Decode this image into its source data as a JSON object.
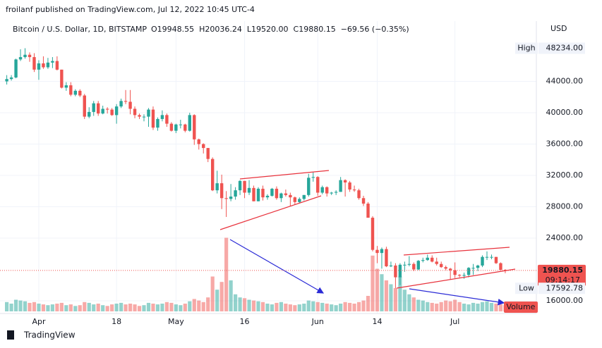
{
  "header": {
    "published": "froilanf published on TradingView.com, Jul 12, 2022 10:45 UTC-4",
    "symbol": "Bitcoin / U.S. Dollar, 1D, BITSTAMP",
    "open": "O19948.55",
    "high": "H20036.24",
    "low": "L19520.00",
    "close": "C19880.15",
    "change": "−69.56 (−0.35%)"
  },
  "chart_data": {
    "type": "candlestick",
    "currency": "USD",
    "up_color": "#26a69a",
    "down_color": "#ef5350",
    "grid": true,
    "open": [
      44000,
      44300,
      44500,
      46800,
      47100,
      47400,
      47100,
      45500,
      46300,
      45800,
      46400,
      46600,
      45500,
      43200,
      43500,
      42300,
      42800,
      42200,
      39500,
      40100,
      41200,
      39900,
      40500,
      40400,
      39700,
      40800,
      41500,
      41400,
      40500,
      39700,
      39500,
      39500,
      40400,
      38100,
      39200,
      39700,
      38600,
      37700,
      38500,
      38500,
      37700,
      39700,
      36600,
      36000,
      35500,
      34100,
      30100,
      31000,
      29100,
      29000,
      29300,
      30100,
      31300,
      29800,
      30400,
      28700,
      30300,
      29200,
      29400,
      30300,
      29100,
      29700,
      29500,
      29200,
      28600,
      29000,
      29500,
      31700,
      31800,
      29800,
      30500,
      29700,
      29800,
      29900,
      31400,
      31100,
      30200,
      30100,
      29100,
      28400,
      26600,
      22500,
      22100,
      22600,
      20400,
      20500,
      19000,
      20600,
      20600,
      20700,
      20000,
      21100,
      21200,
      21500,
      21000,
      20700,
      20300,
      20100,
      19900,
      19300,
      19200,
      19300,
      20200,
      20200,
      20500,
      21600,
      21600,
      21600,
      20800,
      19948.55
    ],
    "high": [
      44800,
      44800,
      46900,
      48100,
      48234,
      47700,
      47600,
      46700,
      47200,
      47000,
      47100,
      47200,
      45500,
      43900,
      43900,
      43000,
      43000,
      42400,
      40700,
      41500,
      41500,
      40900,
      40700,
      40600,
      41100,
      41800,
      42900,
      42900,
      40800,
      39900,
      39800,
      40600,
      40800,
      39400,
      40300,
      39900,
      38800,
      38600,
      39100,
      38600,
      40000,
      39800,
      36700,
      36100,
      35500,
      34300,
      32600,
      32100,
      30000,
      30900,
      30500,
      31400,
      31300,
      31400,
      30700,
      30500,
      30700,
      29600,
      30400,
      30600,
      29800,
      30200,
      29800,
      29300,
      29200,
      29500,
      32200,
      32400,
      31900,
      30700,
      30600,
      29900,
      30100,
      31800,
      31500,
      31300,
      30700,
      30300,
      29400,
      28600,
      26800,
      23000,
      22800,
      22900,
      21000,
      20800,
      20800,
      21000,
      21700,
      20900,
      21200,
      21500,
      21900,
      21800,
      21500,
      21000,
      20500,
      20200,
      20900,
      19400,
      19600,
      20300,
      20700,
      20600,
      21800,
      22300,
      21900,
      21600,
      20900,
      20036.24
    ],
    "low": [
      43600,
      44100,
      44400,
      46600,
      46900,
      46500,
      45200,
      44200,
      45600,
      45600,
      45700,
      45400,
      43100,
      42800,
      42100,
      42100,
      42000,
      39200,
      39300,
      39600,
      39600,
      39800,
      39900,
      39600,
      38600,
      40600,
      41100,
      39800,
      39300,
      39200,
      38900,
      38200,
      37800,
      37700,
      38900,
      38200,
      37600,
      37400,
      38000,
      37500,
      37600,
      35900,
      35300,
      34800,
      33700,
      30000,
      29700,
      27700,
      26700,
      28700,
      28900,
      29500,
      29100,
      29500,
      28700,
      28700,
      28800,
      28900,
      29300,
      28900,
      28600,
      29300,
      28100,
      28300,
      28500,
      28800,
      29300,
      31200,
      29400,
      29600,
      29300,
      29500,
      29500,
      29900,
      29300,
      29900,
      29900,
      28900,
      28100,
      26600,
      22300,
      20800,
      20100,
      20300,
      20300,
      17592.78,
      18000,
      19700,
      20400,
      19800,
      19900,
      20900,
      21100,
      20900,
      20500,
      20200,
      19900,
      18700,
      18900,
      19000,
      18800,
      19000,
      19300,
      19800,
      20300,
      21200,
      21300,
      20700,
      19900,
      19520
    ],
    "close": [
      44300,
      44500,
      46800,
      47100,
      47400,
      47100,
      45500,
      46300,
      45800,
      46400,
      46600,
      45500,
      43200,
      43500,
      42300,
      42800,
      42200,
      39500,
      40100,
      41200,
      39900,
      40500,
      40400,
      39700,
      40800,
      41500,
      41400,
      40500,
      39700,
      39500,
      39500,
      40400,
      38100,
      39200,
      39700,
      38600,
      37700,
      38500,
      38500,
      37700,
      39700,
      36600,
      36000,
      35500,
      34100,
      30100,
      31000,
      29100,
      29000,
      29300,
      30100,
      31300,
      29800,
      30400,
      28700,
      30300,
      29200,
      29400,
      30300,
      29100,
      29700,
      29500,
      29200,
      28600,
      29000,
      29500,
      31700,
      31800,
      29800,
      30500,
      29700,
      29800,
      29900,
      31400,
      31100,
      30200,
      30100,
      29100,
      28400,
      26600,
      22500,
      22100,
      22600,
      20400,
      20500,
      19000,
      20600,
      20600,
      20700,
      20000,
      21100,
      21200,
      21500,
      21000,
      20700,
      20300,
      20100,
      19900,
      19300,
      19200,
      19300,
      20200,
      20200,
      20500,
      21600,
      21600,
      21600,
      20800,
      19948.55,
      19880.15
    ],
    "volume": [
      12,
      10,
      15,
      14,
      13,
      11,
      12,
      10,
      9,
      8,
      9,
      10,
      11,
      8,
      9,
      7,
      8,
      12,
      11,
      9,
      10,
      8,
      7,
      9,
      10,
      11,
      9,
      10,
      9,
      7,
      8,
      11,
      10,
      9,
      10,
      12,
      11,
      9,
      8,
      10,
      13,
      16,
      14,
      12,
      18,
      45,
      28,
      38,
      95,
      40,
      22,
      18,
      17,
      15,
      14,
      13,
      12,
      10,
      9,
      11,
      12,
      10,
      9,
      8,
      9,
      10,
      14,
      13,
      12,
      11,
      10,
      9,
      8,
      10,
      12,
      11,
      10,
      12,
      14,
      20,
      72,
      55,
      48,
      40,
      35,
      30,
      45,
      28,
      22,
      18,
      15,
      14,
      12,
      11,
      10,
      12,
      14,
      13,
      15,
      12,
      10,
      9,
      11,
      10,
      12,
      13,
      11,
      10,
      9,
      8
    ],
    "volume_label": "Volume",
    "vlim": [
      0,
      100
    ],
    "ylim": [
      14380,
      51690
    ],
    "yticks": [
      {
        "value": 16000,
        "label": "16000.00"
      },
      {
        "value": 24000,
        "label": "24000.00"
      },
      {
        "value": 28000,
        "label": "28000.00"
      },
      {
        "value": 32000,
        "label": "32000.00"
      },
      {
        "value": 36000,
        "label": "36000.00"
      },
      {
        "value": 40000,
        "label": "40000.00"
      },
      {
        "value": 44000,
        "label": "44000.00"
      }
    ],
    "xticks": [
      {
        "value": 7,
        "label": "Apr"
      },
      {
        "value": 24,
        "label": "18"
      },
      {
        "value": 37,
        "label": "May"
      },
      {
        "value": 52,
        "label": "16"
      },
      {
        "value": 68,
        "label": "Jun"
      },
      {
        "value": 81,
        "label": "14"
      },
      {
        "value": 98,
        "label": "Jul"
      }
    ],
    "high_marker": {
      "label": "High",
      "value": {
        "value": 48234,
        "label": "48234.00"
      }
    },
    "low_marker": {
      "label": "Low",
      "value": {
        "value": 17592.78,
        "label": "17592.78"
      }
    },
    "last_price": {
      "value": 19880.15,
      "label": "19880.15"
    },
    "countdown": "09:14:17"
  },
  "footer": {
    "brand": "TradingView"
  }
}
